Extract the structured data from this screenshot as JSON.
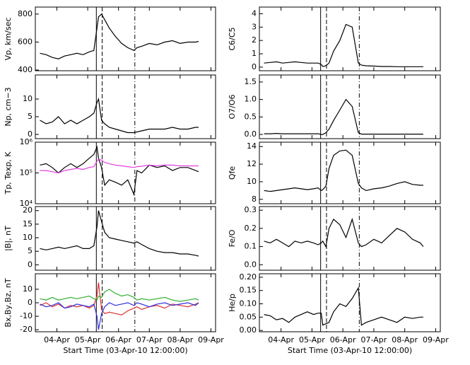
{
  "event_lines": [
    {
      "x": 2.28,
      "style": "solid"
    },
    {
      "x": 2.47,
      "style": "dashed"
    },
    {
      "x": 3.53,
      "style": "dashdot"
    }
  ],
  "chart_data": [
    {
      "type": "line",
      "ylabel": "Vp, km/sec",
      "xlim": [
        0.3,
        6.15
      ],
      "xticks": [
        1,
        2,
        3,
        4,
        5,
        6
      ],
      "ylim": [
        395,
        850
      ],
      "yticks": [
        400,
        600,
        800
      ],
      "x": [
        0.45,
        0.65,
        0.85,
        1.05,
        1.25,
        1.45,
        1.65,
        1.85,
        2.05,
        2.2,
        2.3,
        2.35,
        2.45,
        2.55,
        2.7,
        2.9,
        3.1,
        3.3,
        3.5,
        3.6,
        3.75,
        4.0,
        4.25,
        4.5,
        4.75,
        5.0,
        5.25,
        5.5,
        5.6
      ],
      "series": [
        {
          "color": "#000000",
          "values": [
            520,
            510,
            490,
            480,
            500,
            510,
            520,
            510,
            530,
            540,
            700,
            780,
            800,
            760,
            700,
            640,
            590,
            560,
            540,
            560,
            570,
            590,
            580,
            600,
            610,
            590,
            600,
            600,
            605
          ]
        }
      ]
    },
    {
      "type": "line",
      "ylabel": "Np, cm−3",
      "xlim": [
        0.3,
        6.15
      ],
      "xticks": [
        1,
        2,
        3,
        4,
        5,
        6
      ],
      "ylim": [
        -1.2,
        16.8
      ],
      "yticks": [
        0,
        5,
        10
      ],
      "x": [
        0.45,
        0.65,
        0.85,
        1.05,
        1.25,
        1.45,
        1.65,
        1.85,
        2.05,
        2.2,
        2.3,
        2.35,
        2.45,
        2.55,
        2.7,
        2.9,
        3.1,
        3.3,
        3.5,
        3.6,
        3.75,
        4.0,
        4.25,
        4.5,
        4.75,
        5.0,
        5.25,
        5.5,
        5.6
      ],
      "series": [
        {
          "color": "#000000",
          "values": [
            4,
            3,
            3.5,
            5,
            3,
            4,
            3,
            4,
            5,
            6,
            9,
            10,
            4,
            3,
            2,
            1.5,
            1,
            0.5,
            0.5,
            0.7,
            1,
            1.5,
            1.5,
            1.5,
            2,
            1.5,
            1.5,
            2,
            2
          ]
        }
      ]
    },
    {
      "type": "line",
      "ylabel": "Tp, Texp, K",
      "log_y": true,
      "xlim": [
        0.3,
        6.15
      ],
      "xticks": [
        1,
        2,
        3,
        4,
        5,
        6
      ],
      "ylim": [
        10000,
        1000000
      ],
      "yticks": [
        {
          "value": 10000,
          "label": "10⁴"
        },
        {
          "value": 100000,
          "label": "10⁵"
        },
        {
          "value": 1000000,
          "label": "10⁶"
        }
      ],
      "x": [
        0.45,
        0.65,
        0.85,
        1.05,
        1.25,
        1.45,
        1.65,
        1.85,
        2.05,
        2.2,
        2.3,
        2.35,
        2.45,
        2.55,
        2.7,
        2.9,
        3.1,
        3.3,
        3.5,
        3.6,
        3.75,
        4.0,
        4.25,
        4.5,
        4.75,
        5.0,
        5.25,
        5.5,
        5.6
      ],
      "series": [
        {
          "color": "#000000",
          "values": [
            180000,
            200000,
            150000,
            100000,
            150000,
            200000,
            150000,
            200000,
            300000,
            400000,
            700000,
            300000,
            150000,
            40000,
            60000,
            50000,
            40000,
            60000,
            20000,
            120000,
            100000,
            180000,
            150000,
            170000,
            120000,
            150000,
            150000,
            120000,
            110000
          ]
        },
        {
          "color": "#e040e0",
          "values": [
            120000,
            120000,
            110000,
            100000,
            120000,
            130000,
            140000,
            130000,
            150000,
            160000,
            240000,
            280000,
            260000,
            220000,
            200000,
            180000,
            170000,
            160000,
            150000,
            160000,
            165000,
            180000,
            170000,
            180000,
            180000,
            170000,
            170000,
            170000,
            170000
          ]
        }
      ]
    },
    {
      "type": "line",
      "ylabel": "|B|, nT",
      "xlim": [
        0.3,
        6.15
      ],
      "xticks": [
        1,
        2,
        3,
        4,
        5,
        6
      ],
      "ylim": [
        -2,
        21.5
      ],
      "yticks": [
        0,
        5,
        10,
        15,
        20
      ],
      "x": [
        0.45,
        0.65,
        0.85,
        1.05,
        1.25,
        1.45,
        1.65,
        1.85,
        2.05,
        2.2,
        2.3,
        2.35,
        2.45,
        2.55,
        2.7,
        2.9,
        3.1,
        3.3,
        3.5,
        3.6,
        3.75,
        4.0,
        4.25,
        4.5,
        4.75,
        5.0,
        5.25,
        5.5,
        5.6
      ],
      "series": [
        {
          "color": "#000000",
          "values": [
            6,
            5.5,
            6,
            6.5,
            6,
            6.5,
            7,
            6,
            6,
            7,
            14,
            20,
            16,
            12,
            10,
            9.5,
            9,
            8.5,
            8,
            8.5,
            7.5,
            6,
            5,
            4.5,
            4.5,
            4,
            4,
            3.5,
            3.2
          ]
        }
      ]
    },
    {
      "type": "line",
      "ylabel": "Bx,By,Bz, nT",
      "xlabel": "Start Time (03-Apr-10 12:00:00)",
      "xlim": [
        0.3,
        6.15
      ],
      "xticks": [
        {
          "value": 1,
          "label": "04-Apr"
        },
        {
          "value": 2,
          "label": "05-Apr"
        },
        {
          "value": 3,
          "label": "06-Apr"
        },
        {
          "value": 4,
          "label": "07-Apr"
        },
        {
          "value": 5,
          "label": "08-Apr"
        },
        {
          "value": 6,
          "label": "09-Apr"
        }
      ],
      "ylim": [
        -21.5,
        21.5
      ],
      "yticks": [
        -20,
        -10,
        0,
        10
      ],
      "x": [
        0.45,
        0.65,
        0.85,
        1.05,
        1.25,
        1.45,
        1.65,
        1.85,
        2.05,
        2.2,
        2.3,
        2.35,
        2.45,
        2.55,
        2.7,
        2.9,
        3.1,
        3.3,
        3.5,
        3.6,
        3.75,
        4.0,
        4.25,
        4.5,
        4.75,
        5.0,
        5.25,
        5.5,
        5.6
      ],
      "series": [
        {
          "color": "#e03030",
          "values": [
            -2,
            0,
            -3,
            -1,
            -4,
            -2,
            -3,
            -2,
            -4,
            -2,
            5,
            15,
            -5,
            -8,
            -7,
            -8,
            -9,
            -6,
            -4,
            -3,
            -5,
            -3,
            -2,
            -4,
            -1,
            -2,
            -3,
            -1,
            0
          ]
        },
        {
          "color": "#30b030",
          "values": [
            3,
            2,
            4,
            2,
            3,
            4,
            3,
            4,
            5,
            3,
            2,
            5,
            4,
            8,
            10,
            7,
            5,
            6,
            4,
            2,
            3,
            2,
            3,
            4,
            2,
            1,
            2,
            3,
            2
          ]
        },
        {
          "color": "#3030e0",
          "values": [
            -1,
            -3,
            -2,
            0,
            -4,
            -3,
            -1,
            -2,
            -3,
            -1,
            -10,
            -20,
            -8,
            -3,
            0,
            -2,
            -1,
            0,
            -2,
            0,
            -1,
            -3,
            -1,
            0,
            -2,
            -1,
            0,
            -2,
            0
          ]
        }
      ]
    },
    {
      "type": "line",
      "ylabel": "C6/C5",
      "xlim": [
        0.3,
        6.15
      ],
      "xticks": [
        1,
        2,
        3,
        4,
        5,
        6
      ],
      "ylim": [
        -0.27,
        4.5
      ],
      "yticks": [
        0,
        1,
        2,
        3,
        4
      ],
      "x": [
        0.45,
        0.65,
        0.85,
        1.05,
        1.25,
        1.45,
        1.65,
        1.85,
        2.05,
        2.2,
        2.3,
        2.35,
        2.45,
        2.55,
        2.7,
        2.9,
        3.1,
        3.3,
        3.5,
        3.6,
        3.75,
        4.0,
        4.25,
        4.5,
        4.75,
        5.0,
        5.25,
        5.5,
        5.6
      ],
      "series": [
        {
          "color": "#000000",
          "values": [
            0.3,
            0.35,
            0.4,
            0.3,
            0.35,
            0.4,
            0.35,
            0.3,
            0.3,
            0.3,
            0.2,
            0.05,
            0.1,
            0.3,
            1.2,
            2.0,
            3.2,
            3.0,
            0.3,
            0.15,
            0.1,
            0.08,
            0.05,
            0.05,
            0.03,
            0.03,
            0.03,
            0.03,
            0.03
          ]
        }
      ]
    },
    {
      "type": "line",
      "ylabel": "O7/O6",
      "xlim": [
        0.3,
        6.15
      ],
      "xticks": [
        1,
        2,
        3,
        4,
        5,
        6
      ],
      "ylim": [
        -0.12,
        1.7
      ],
      "yticks": [
        {
          "value": 0,
          "label": "0.0"
        },
        0.5,
        {
          "value": 1,
          "label": "1.0"
        },
        1.5
      ],
      "x": [
        0.45,
        0.65,
        0.85,
        1.05,
        1.25,
        1.45,
        1.65,
        1.85,
        2.05,
        2.2,
        2.3,
        2.35,
        2.45,
        2.55,
        2.7,
        2.9,
        3.1,
        3.3,
        3.5,
        3.6,
        3.75,
        4.0,
        4.25,
        4.5,
        4.75,
        5.0,
        5.25,
        5.5,
        5.6
      ],
      "series": [
        {
          "color": "#000000",
          "values": [
            0.02,
            0.02,
            0.03,
            0.02,
            0.02,
            0.02,
            0.02,
            0.02,
            0.02,
            0.02,
            0,
            0,
            0.05,
            0.15,
            0.4,
            0.7,
            1.0,
            0.8,
            0.05,
            0.01,
            0.01,
            0.01,
            0.01,
            0.01,
            0.01,
            0.01,
            0.01,
            0.01,
            0.01
          ]
        }
      ]
    },
    {
      "type": "line",
      "ylabel": "Qfe",
      "xlim": [
        0.3,
        6.15
      ],
      "xticks": [
        1,
        2,
        3,
        4,
        5,
        6
      ],
      "ylim": [
        7.5,
        14.5
      ],
      "yticks": [
        8,
        10,
        12,
        14
      ],
      "x": [
        0.45,
        0.65,
        0.85,
        1.05,
        1.25,
        1.45,
        1.65,
        1.85,
        2.05,
        2.2,
        2.3,
        2.35,
        2.45,
        2.55,
        2.7,
        2.9,
        3.1,
        3.3,
        3.5,
        3.6,
        3.75,
        4.0,
        4.25,
        4.5,
        4.75,
        5.0,
        5.25,
        5.5,
        5.6
      ],
      "series": [
        {
          "color": "#000000",
          "values": [
            9,
            8.9,
            9,
            9.1,
            9.2,
            9.3,
            9.2,
            9.1,
            9.2,
            9.3,
            9.0,
            9.1,
            9.5,
            11.5,
            13,
            13.5,
            13.6,
            13,
            9.8,
            9.3,
            9.0,
            9.2,
            9.3,
            9.5,
            9.8,
            10,
            9.7,
            9.6,
            9.6
          ]
        }
      ]
    },
    {
      "type": "line",
      "ylabel": "Fe/O",
      "xlim": [
        0.3,
        6.15
      ],
      "xticks": [
        1,
        2,
        3,
        4,
        5,
        6
      ],
      "ylim": [
        -0.03,
        0.32
      ],
      "yticks": [
        {
          "value": 0,
          "label": "0.0"
        },
        0.1,
        0.2,
        0.3
      ],
      "x": [
        0.45,
        0.65,
        0.85,
        1.05,
        1.25,
        1.45,
        1.65,
        1.85,
        2.05,
        2.2,
        2.3,
        2.35,
        2.45,
        2.55,
        2.7,
        2.9,
        3.1,
        3.3,
        3.5,
        3.6,
        3.75,
        4.0,
        4.25,
        4.5,
        4.75,
        5.0,
        5.25,
        5.5,
        5.6
      ],
      "series": [
        {
          "color": "#000000",
          "values": [
            0.13,
            0.12,
            0.14,
            0.12,
            0.1,
            0.13,
            0.12,
            0.13,
            0.12,
            0.11,
            0.12,
            0.13,
            0.1,
            0.2,
            0.25,
            0.22,
            0.15,
            0.25,
            0.12,
            0.1,
            0.11,
            0.14,
            0.12,
            0.16,
            0.2,
            0.18,
            0.14,
            0.12,
            0.1
          ]
        }
      ]
    },
    {
      "type": "line",
      "ylabel": "He/p",
      "xlabel": "Start Time (03-Apr-10 12:00:00)",
      "xlim": [
        0.3,
        6.15
      ],
      "xticks": [
        {
          "value": 1,
          "label": "04-Apr"
        },
        {
          "value": 2,
          "label": "05-Apr"
        },
        {
          "value": 3,
          "label": "06-Apr"
        },
        {
          "value": 4,
          "label": "07-Apr"
        },
        {
          "value": 5,
          "label": "08-Apr"
        },
        {
          "value": 6,
          "label": "09-Apr"
        }
      ],
      "ylim": [
        -0.005,
        0.213
      ],
      "yticks": [
        {
          "value": 0,
          "label": "0.00"
        },
        {
          "value": 0.05,
          "label": "0.05"
        },
        {
          "value": 0.1,
          "label": "0.10"
        },
        {
          "value": 0.15,
          "label": "0.15"
        },
        {
          "value": 0.2,
          "label": "0.20"
        }
      ],
      "x": [
        0.45,
        0.65,
        0.85,
        1.05,
        1.25,
        1.45,
        1.65,
        1.85,
        2.05,
        2.2,
        2.3,
        2.35,
        2.45,
        2.55,
        2.7,
        2.9,
        3.1,
        3.3,
        3.5,
        3.6,
        3.75,
        4.0,
        4.25,
        4.5,
        4.75,
        5.0,
        5.25,
        5.5,
        5.6
      ],
      "series": [
        {
          "color": "#000000",
          "values": [
            0.06,
            0.055,
            0.04,
            0.045,
            0.03,
            0.05,
            0.06,
            0.07,
            0.06,
            0.065,
            0.065,
            0.02,
            0.025,
            0.03,
            0.07,
            0.1,
            0.09,
            0.12,
            0.16,
            0.02,
            0.03,
            0.04,
            0.05,
            0.04,
            0.03,
            0.05,
            0.045,
            0.05,
            0.05
          ]
        }
      ]
    }
  ]
}
